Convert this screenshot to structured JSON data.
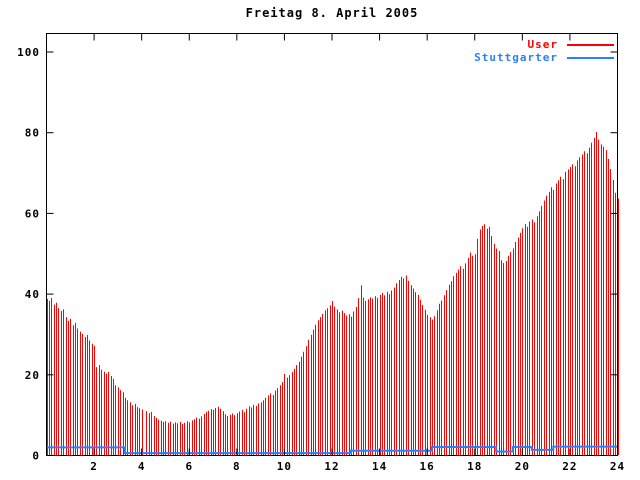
{
  "title": "Freitag 8. April 2005",
  "legend": [
    {
      "label": "User",
      "color": "#ff0000"
    },
    {
      "label": "Stuttgarter",
      "color": "#2a7fff"
    }
  ],
  "colors": {
    "background": "#ffffff",
    "frame": "#000000",
    "user_series": "#ff0000",
    "stuttgarter_series": "#2a7fff"
  },
  "axes": {
    "x": {
      "min": 0,
      "max": 24,
      "tick_step": 2,
      "tick_labels": [
        "2",
        "4",
        "6",
        "8",
        "10",
        "12",
        "14",
        "16",
        "18",
        "20",
        "22",
        "24"
      ]
    },
    "y": {
      "min": 0,
      "max": 100,
      "tick_step": 20,
      "tick_labels": [
        "0",
        "20",
        "40",
        "60",
        "80",
        "100"
      ]
    }
  },
  "chart_data": {
    "type": "bar",
    "title": "Freitag 8. April 2005",
    "xlabel": "",
    "ylabel": "",
    "xlim": [
      0,
      24
    ],
    "ylim": [
      0,
      104.5
    ],
    "grid": false,
    "legend_position": "top-right-inside",
    "x_start": 0,
    "x_step": 0.1,
    "series": [
      {
        "name": "User",
        "style": "impulses",
        "color": "#ff0000",
        "values": [
          38.8,
          38.3,
          39.0,
          37.4,
          37.9,
          36.5,
          35.8,
          36.2,
          34.3,
          33.4,
          33.9,
          32.3,
          32.9,
          31.5,
          30.7,
          30.1,
          29.4,
          29.9,
          28.5,
          27.7,
          27.2,
          21.9,
          22.4,
          21.3,
          20.8,
          20.3,
          20.7,
          19.7,
          19.0,
          17.4,
          16.9,
          16.2,
          15.7,
          14.3,
          13.7,
          13.2,
          12.5,
          12.8,
          12.0,
          11.7,
          11.4,
          0,
          11.0,
          10.5,
          10.8,
          9.8,
          9.3,
          8.9,
          8.6,
          8.3,
          8.5,
          8.1,
          8.4,
          7.9,
          8.2,
          8.0,
          8.3,
          7.8,
          8.1,
          8.5,
          8.2,
          8.7,
          9.0,
          9.4,
          9.1,
          9.7,
          10.3,
          10.8,
          11.1,
          11.5,
          11.3,
          11.8,
          12.1,
          11.6,
          11.0,
          10.2,
          9.8,
          10.1,
          10.4,
          10.0,
          10.5,
          10.9,
          11.3,
          10.7,
          11.6,
          12.2,
          11.9,
          12.6,
          12.3,
          12.9,
          13.2,
          13.7,
          14.3,
          14.9,
          15.4,
          15.0,
          16.1,
          16.7,
          17.4,
          18.2,
          20.2,
          19.3,
          19.9,
          20.7,
          21.5,
          22.4,
          23.2,
          24.5,
          25.7,
          27.1,
          28.7,
          29.9,
          31.2,
          32.4,
          33.5,
          34.3,
          35.1,
          36.0,
          36.5,
          37.2,
          38.3,
          36.9,
          36.2,
          35.5,
          35.9,
          35.3,
          34.7,
          35.0,
          34.4,
          35.7,
          36.8,
          39.0,
          42.2,
          39.1,
          38.3,
          38.7,
          39.2,
          38.9,
          39.5,
          39.1,
          39.8,
          40.3,
          39.7,
          40.6,
          40.0,
          40.9,
          41.6,
          42.7,
          43.5,
          44.3,
          43.9,
          44.6,
          43.3,
          42.2,
          41.4,
          40.5,
          39.8,
          38.6,
          37.3,
          36.1,
          34.9,
          34.3,
          33.7,
          34.5,
          36.0,
          37.6,
          38.4,
          39.7,
          41.0,
          42.3,
          43.2,
          44.4,
          45.3,
          46.1,
          46.9,
          46.3,
          47.6,
          49.0,
          50.3,
          49.5,
          49.9,
          53.7,
          56.0,
          56.9,
          57.3,
          56.2,
          56.7,
          54.4,
          52.5,
          51.3,
          50.7,
          48.4,
          47.7,
          48.2,
          49.5,
          50.4,
          51.3,
          52.9,
          54.0,
          55.2,
          56.3,
          57.4,
          56.7,
          58.0,
          58.5,
          57.8,
          59.3,
          60.5,
          61.9,
          63.2,
          64.4,
          65.3,
          66.5,
          65.8,
          67.4,
          68.2,
          69.1,
          68.5,
          70.3,
          70.9,
          71.5,
          72.2,
          71.7,
          73.1,
          73.9,
          74.6,
          75.4,
          74.9,
          76.3,
          77.5,
          78.7,
          80.2,
          78.3,
          77.1,
          76.5,
          75.7,
          73.5,
          71.0,
          68.3,
          65.1,
          63.7
        ]
      },
      {
        "name": "Stuttgarter",
        "style": "step-line",
        "color": "#2a7fff",
        "segments": [
          {
            "from": 0.0,
            "to": 3.3,
            "value": 2.0
          },
          {
            "from": 3.3,
            "to": 12.8,
            "value": 0.6
          },
          {
            "from": 12.8,
            "to": 16.2,
            "value": 1.2
          },
          {
            "from": 16.2,
            "to": 18.9,
            "value": 2.1
          },
          {
            "from": 18.9,
            "to": 19.6,
            "value": 1.0
          },
          {
            "from": 19.6,
            "to": 20.4,
            "value": 2.1
          },
          {
            "from": 20.4,
            "to": 21.3,
            "value": 1.4
          },
          {
            "from": 21.3,
            "to": 24.0,
            "value": 2.2
          }
        ]
      }
    ]
  }
}
